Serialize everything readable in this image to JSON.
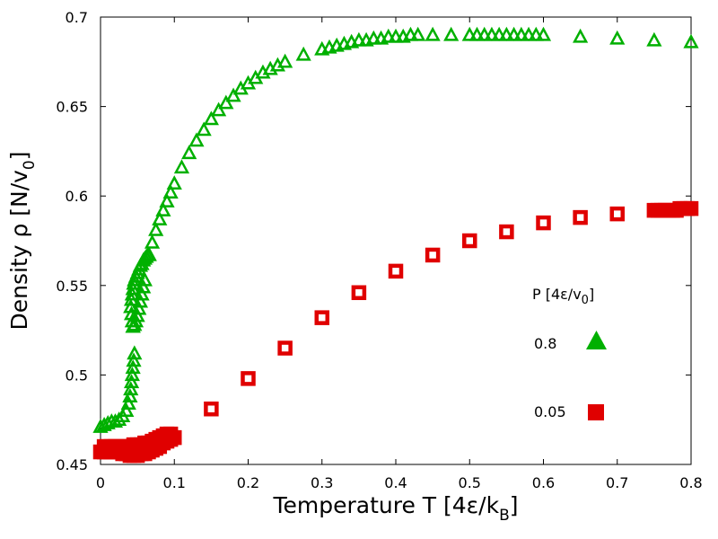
{
  "chart_data": {
    "type": "scatter",
    "title": "",
    "xlabel": "Temperature T [4ε/k",
    "xlabel_sub": "B",
    "xlabel_end": "]",
    "ylabel": "Density ρ  [N/v",
    "ylabel_sub": "0",
    "ylabel_end": "]",
    "xlim": [
      0,
      0.8
    ],
    "ylim": [
      0.45,
      0.7
    ],
    "xticks": [
      0,
      0.1,
      0.2,
      0.3,
      0.4,
      0.5,
      0.6,
      0.7,
      0.8
    ],
    "xtick_labels": [
      "0",
      "0.1",
      "0.2",
      "0.3",
      "0.4",
      "0.5",
      "0.6",
      "0.7",
      "0.8"
    ],
    "yticks": [
      0.45,
      0.5,
      0.55,
      0.6,
      0.65,
      0.7
    ],
    "ytick_labels": [
      "0.45",
      "0.5",
      "0.55",
      "0.6",
      "0.65",
      "0.7"
    ],
    "grid": false,
    "legend": {
      "title": "P [4ε/v",
      "title_sub": "0",
      "title_end": "]",
      "position": "right"
    },
    "series": [
      {
        "name": "0.8",
        "marker": "triangle",
        "color": "#00b000",
        "x": [
          0.0,
          0.005,
          0.01,
          0.015,
          0.02,
          0.025,
          0.03,
          0.035,
          0.038,
          0.04,
          0.041,
          0.042,
          0.043,
          0.044,
          0.045,
          0.046,
          0.044,
          0.043,
          0.042,
          0.041,
          0.042,
          0.043,
          0.044,
          0.045,
          0.046,
          0.048,
          0.05,
          0.052,
          0.054,
          0.056,
          0.058,
          0.06,
          0.062,
          0.064,
          0.066,
          0.06,
          0.058,
          0.056,
          0.054,
          0.052,
          0.05,
          0.048,
          0.046,
          0.044,
          0.07,
          0.075,
          0.08,
          0.085,
          0.09,
          0.095,
          0.1,
          0.11,
          0.12,
          0.13,
          0.14,
          0.15,
          0.16,
          0.17,
          0.18,
          0.19,
          0.2,
          0.21,
          0.22,
          0.23,
          0.24,
          0.25,
          0.275,
          0.3,
          0.31,
          0.32,
          0.33,
          0.34,
          0.35,
          0.36,
          0.37,
          0.38,
          0.39,
          0.4,
          0.41,
          0.42,
          0.43,
          0.45,
          0.475,
          0.5,
          0.51,
          0.52,
          0.53,
          0.54,
          0.55,
          0.56,
          0.57,
          0.58,
          0.59,
          0.6,
          0.65,
          0.7,
          0.75,
          0.8
        ],
        "y": [
          0.471,
          0.472,
          0.473,
          0.474,
          0.474,
          0.475,
          0.477,
          0.48,
          0.484,
          0.488,
          0.492,
          0.496,
          0.5,
          0.504,
          0.508,
          0.512,
          0.527,
          0.53,
          0.534,
          0.538,
          0.542,
          0.545,
          0.548,
          0.551,
          0.553,
          0.555,
          0.557,
          0.559,
          0.561,
          0.562,
          0.564,
          0.565,
          0.566,
          0.567,
          0.567,
          0.553,
          0.549,
          0.545,
          0.541,
          0.537,
          0.533,
          0.53,
          0.528,
          0.527,
          0.574,
          0.581,
          0.587,
          0.592,
          0.597,
          0.602,
          0.607,
          0.616,
          0.624,
          0.631,
          0.637,
          0.643,
          0.648,
          0.652,
          0.656,
          0.66,
          0.663,
          0.666,
          0.669,
          0.671,
          0.673,
          0.675,
          0.679,
          0.682,
          0.683,
          0.684,
          0.685,
          0.686,
          0.687,
          0.687,
          0.688,
          0.688,
          0.689,
          0.689,
          0.689,
          0.69,
          0.69,
          0.69,
          0.69,
          0.69,
          0.69,
          0.69,
          0.69,
          0.69,
          0.69,
          0.69,
          0.69,
          0.69,
          0.69,
          0.69,
          0.689,
          0.688,
          0.687,
          0.686
        ]
      },
      {
        "name": "0.05",
        "marker": "square",
        "color": "#e00000",
        "x": [
          0.0,
          0.005,
          0.01,
          0.015,
          0.02,
          0.025,
          0.03,
          0.035,
          0.04,
          0.045,
          0.05,
          0.055,
          0.06,
          0.065,
          0.07,
          0.075,
          0.08,
          0.085,
          0.09,
          0.095,
          0.1,
          0.095,
          0.09,
          0.085,
          0.08,
          0.075,
          0.07,
          0.065,
          0.06,
          0.055,
          0.05,
          0.045,
          0.04,
          0.035,
          0.03,
          0.025,
          0.02,
          0.015,
          0.01,
          0.005,
          0.15,
          0.2,
          0.25,
          0.3,
          0.35,
          0.4,
          0.45,
          0.5,
          0.55,
          0.6,
          0.65,
          0.7,
          0.75,
          0.755,
          0.76,
          0.765,
          0.77,
          0.775,
          0.78,
          0.785,
          0.79,
          0.795,
          0.8
        ],
        "y": [
          0.457,
          0.457,
          0.457,
          0.457,
          0.457,
          0.457,
          0.456,
          0.456,
          0.455,
          0.455,
          0.455,
          0.456,
          0.456,
          0.457,
          0.458,
          0.459,
          0.46,
          0.462,
          0.463,
          0.464,
          0.465,
          0.467,
          0.467,
          0.466,
          0.465,
          0.464,
          0.463,
          0.462,
          0.462,
          0.461,
          0.461,
          0.461,
          0.46,
          0.46,
          0.46,
          0.46,
          0.46,
          0.46,
          0.46,
          0.46,
          0.481,
          0.498,
          0.515,
          0.532,
          0.546,
          0.558,
          0.567,
          0.575,
          0.58,
          0.585,
          0.588,
          0.59,
          0.592,
          0.592,
          0.592,
          0.592,
          0.592,
          0.592,
          0.592,
          0.593,
          0.593,
          0.593,
          0.593
        ]
      }
    ]
  }
}
